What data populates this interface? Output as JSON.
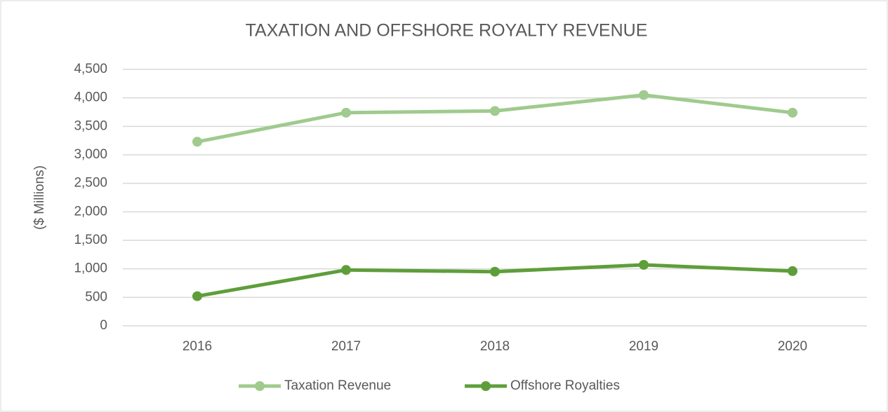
{
  "chart_data": {
    "type": "line",
    "title": "TAXATION AND OFFSHORE ROYALTY REVENUE",
    "y_label": "($ Millions)",
    "categories": [
      "2016",
      "2017",
      "2018",
      "2019",
      "2020"
    ],
    "series": [
      {
        "name": "Taxation Revenue",
        "color": "#9fcb8e",
        "values": [
          3230,
          3740,
          3770,
          4050,
          3740
        ]
      },
      {
        "name": "Offshore Royalties",
        "color": "#5e9e3a",
        "values": [
          520,
          980,
          950,
          1070,
          960
        ]
      }
    ],
    "ylim": [
      0,
      4500
    ],
    "yticks": [
      0,
      500,
      {
        "value": 1000,
        "label": "1,000"
      },
      {
        "value": 1500,
        "label": "1,500"
      },
      {
        "value": 2000,
        "label": "2,000"
      },
      {
        "value": 2500,
        "label": "2,500"
      },
      {
        "value": 3000,
        "label": "3,000"
      },
      {
        "value": 3500,
        "label": "3,500"
      },
      {
        "value": 4000,
        "label": "4,000"
      },
      {
        "value": 4500,
        "label": "4,500"
      }
    ],
    "grid": true,
    "legend": "bottom"
  }
}
